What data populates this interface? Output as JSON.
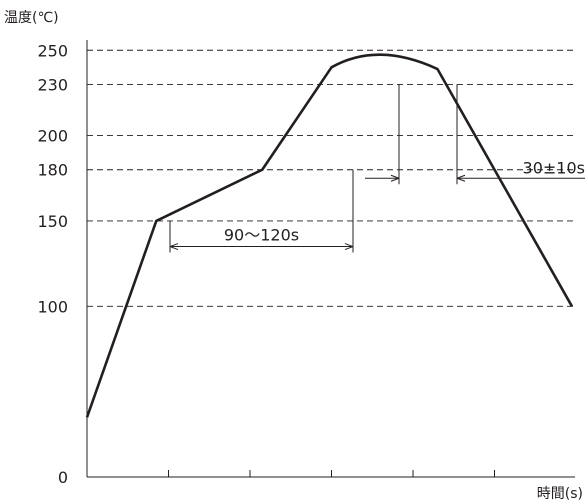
{
  "chart_data": {
    "type": "line",
    "ylabel": "温度(℃)",
    "xlabel": "時間(s)",
    "ylim": [
      0,
      250
    ],
    "y_ticks": [
      0,
      100,
      150,
      180,
      200,
      230,
      250
    ],
    "y_gridlines": [
      100,
      150,
      180,
      200,
      230,
      250
    ],
    "grid": "horizontal dashed",
    "series": [
      {
        "x": [
          0,
          0.85,
          2.15,
          3.0,
          3.14,
          4.3,
          5.95
        ],
        "values": [
          35,
          150,
          180,
          240,
          248,
          239,
          100
        ]
      }
    ],
    "annotations": [
      {
        "label": "90〜120s",
        "from_x": 1.0,
        "to_x": 3.23,
        "at_y": 135
      },
      {
        "label": "30±10s",
        "from_x": 3.9,
        "to_x": 4.6,
        "at_y": 175
      }
    ]
  }
}
